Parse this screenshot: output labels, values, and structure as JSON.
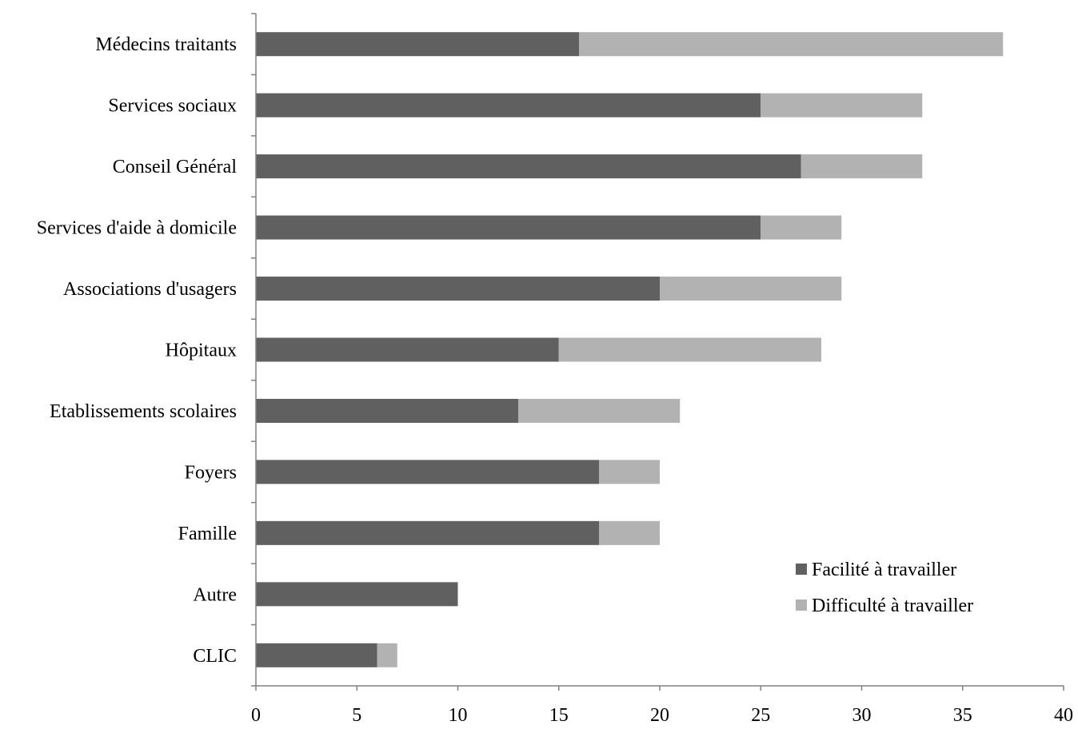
{
  "chart_data": {
    "type": "bar",
    "orientation": "horizontal",
    "stacked": true,
    "categories": [
      "Médecins traitants",
      "Services sociaux",
      "Conseil Général",
      "Services d'aide à domicile",
      "Associations d'usagers",
      "Hôpitaux",
      "Etablissements scolaires",
      "Foyers",
      "Famille",
      "Autre",
      "CLIC"
    ],
    "series": [
      {
        "name": "Facilité à travailler",
        "color": "#606060",
        "values": [
          16,
          25,
          27,
          25,
          20,
          15,
          13,
          17,
          17,
          10,
          6
        ]
      },
      {
        "name": "Difficulté à travailler",
        "color": "#b2b2b2",
        "values": [
          21,
          8,
          6,
          4,
          9,
          13,
          8,
          3,
          3,
          0,
          1
        ]
      }
    ],
    "xlim": [
      0,
      40
    ],
    "xticks": [
      "0",
      "5",
      "10",
      "15",
      "20",
      "25",
      "30",
      "35",
      "40"
    ],
    "xlabel": "",
    "ylabel": "",
    "title": "",
    "grid": false,
    "legend_position": "bottom-right"
  }
}
